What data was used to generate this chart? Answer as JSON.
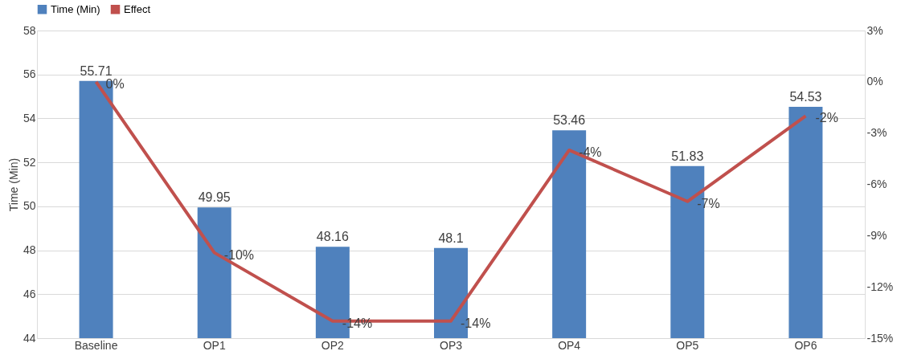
{
  "chart_data": {
    "type": "bar",
    "ylabel": "Time (Min)",
    "categories": [
      "Baseline",
      "OP1",
      "OP2",
      "OP3",
      "OP4",
      "OP5",
      "OP6"
    ],
    "series": [
      {
        "name": "Time (Min)",
        "color": "#4f81bd",
        "values": [
          55.71,
          49.95,
          48.16,
          48.1,
          53.46,
          51.83,
          54.53
        ],
        "value_labels": [
          "55.71",
          "49.95",
          "48.16",
          "48.1",
          "53.46",
          "51.83",
          "54.53"
        ]
      },
      {
        "name": "Effect",
        "type": "line",
        "axis": "y2",
        "color": "#c0504d",
        "values": [
          0,
          -10,
          -14,
          -14,
          -4,
          -7,
          -2
        ],
        "value_labels": [
          "0%",
          "-10%",
          "-14%",
          "-14%",
          "-4%",
          "-7%",
          "-2%"
        ]
      }
    ],
    "ylim": [
      44,
      58
    ],
    "yticks": [
      44,
      46,
      48,
      50,
      52,
      54,
      56,
      58
    ],
    "y2lim": [
      -15,
      3
    ],
    "y2ticks": [
      {
        "value": -15,
        "label": "-15%"
      },
      {
        "value": -12,
        "label": "-12%"
      },
      {
        "value": -9,
        "label": "-9%"
      },
      {
        "value": -6,
        "label": "-6%"
      },
      {
        "value": -3,
        "label": "-3%"
      },
      {
        "value": 0,
        "label": "0%"
      },
      {
        "value": 3,
        "label": "3%"
      }
    ],
    "grid": "y",
    "legend": "top",
    "marker": "none",
    "line_style": "solid"
  }
}
